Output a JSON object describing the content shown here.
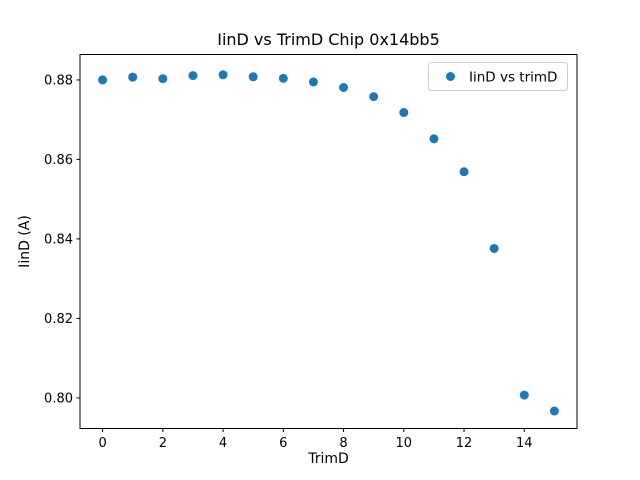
{
  "chart_data": {
    "type": "scatter",
    "title": "IinD vs TrimD Chip 0x14bb5",
    "xlabel": "TrimD",
    "ylabel": "IinD (A)",
    "legend": {
      "label": "IinD vs trimD",
      "position": "upper right"
    },
    "series": [
      {
        "name": "IinD vs trimD",
        "x": [
          0,
          1,
          2,
          3,
          4,
          5,
          6,
          7,
          8,
          9,
          10,
          11,
          12,
          13,
          14,
          15
        ],
        "y": [
          0.88,
          0.8807,
          0.8803,
          0.8811,
          0.8813,
          0.8808,
          0.8804,
          0.8795,
          0.8781,
          0.8758,
          0.8718,
          0.8652,
          0.8569,
          0.8376,
          0.8007,
          0.7967
        ]
      }
    ],
    "marker_color": "#1f77b4",
    "marker_radius_px": 4.5,
    "xlim": [
      -0.75,
      15.75
    ],
    "ylim": [
      0.7923,
      0.8864
    ],
    "xticks": [
      0,
      2,
      4,
      6,
      8,
      10,
      12,
      14
    ],
    "xtick_labels": [
      "0",
      "2",
      "4",
      "6",
      "8",
      "10",
      "12",
      "14"
    ],
    "yticks": [
      0.8,
      0.82,
      0.84,
      0.86,
      0.88
    ],
    "ytick_labels": [
      "0.80",
      "0.82",
      "0.84",
      "0.86",
      "0.88"
    ],
    "grid": false,
    "background_color": "#ffffff",
    "axis_color": "#000000",
    "legend_border_color": "#cccccc"
  }
}
